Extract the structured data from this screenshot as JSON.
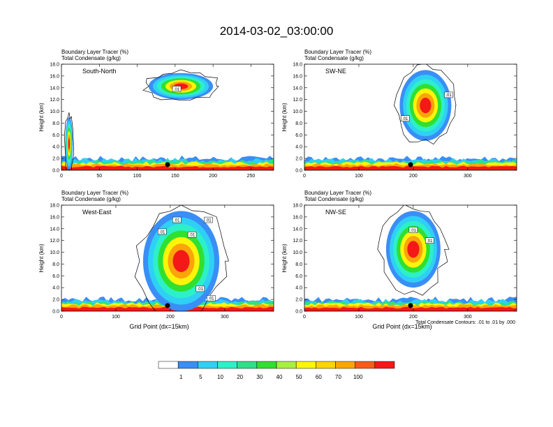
{
  "chart_data": {
    "type": "heatmap",
    "title": "2014-03-02_03:00:00",
    "footnote": "Total Condensate Contours: .01 to .01 by .000",
    "colorbar": {
      "colors": [
        "#ffffff",
        "#3a8ef6",
        "#2fd0f5",
        "#2ef0c8",
        "#2fe08a",
        "#30e030",
        "#a8f040",
        "#fcf40a",
        "#fcd30a",
        "#fca40a",
        "#fc5a1a",
        "#f51818"
      ],
      "labels": [
        "1",
        "5",
        "10",
        "20",
        "30",
        "40",
        "50",
        "60",
        "70",
        "100"
      ]
    },
    "panels": [
      {
        "id": "sn",
        "heading1": "Boundary Layer Tracer    (%)",
        "heading2": "Total Condensate    (g/kg)",
        "label": "South-North",
        "ylabel": "Height (km)",
        "xlabel": "",
        "xlim": [
          0,
          280
        ],
        "ylim": [
          0,
          18
        ],
        "yticks": [
          "0.0",
          "2.0",
          "4.0",
          "6.0",
          "8.0",
          "10.0",
          "12.0",
          "14.0",
          "16.0",
          "18.0"
        ],
        "xticks": [
          0,
          50,
          100,
          150,
          200,
          250
        ],
        "xticklabels": [
          "0",
          "50",
          "100",
          "150",
          "200",
          "250"
        ],
        "marker_x": 140,
        "contour_labels": [
          {
            "x": 152,
            "y": 13.8,
            "text": ".01"
          }
        ],
        "plumes": [
          {
            "x0": 115,
            "x1": 200,
            "y0": 12,
            "y1": 16.5
          },
          {
            "x0": 5,
            "x1": 15,
            "y0": 0,
            "y1": 9
          }
        ]
      },
      {
        "id": "swne",
        "heading1": "Boundary Layer Tracer    (%)",
        "heading2": "Total Condensate    (g/kg)",
        "label": "SW-NE",
        "ylabel": "Height (km)",
        "xlabel": "",
        "xlim": [
          0,
          390
        ],
        "ylim": [
          0,
          18
        ],
        "yticks": [
          "0.0",
          "2.0",
          "4.0",
          "6.0",
          "8.0",
          "10.0",
          "12.0",
          "14.0",
          "16.0",
          "18.0"
        ],
        "xticks": [
          0,
          100,
          200,
          300
        ],
        "xticklabels": [
          "0",
          "100",
          "200",
          "300"
        ],
        "marker_x": 195,
        "contour_labels": [
          {
            "x": 265,
            "y": 12.8,
            "text": ".01"
          },
          {
            "x": 185,
            "y": 8.8,
            "text": ".01"
          }
        ],
        "plumes": [
          {
            "x0": 175,
            "x1": 270,
            "y0": 5,
            "y1": 17
          }
        ]
      },
      {
        "id": "we",
        "heading1": "Boundary Layer Tracer    (%)",
        "heading2": "Total Condensate    (g/kg)",
        "label": "West-East",
        "ylabel": "Height (km)",
        "xlabel": "Grid Point (dx=15km)",
        "xlim": [
          0,
          390
        ],
        "ylim": [
          0,
          18
        ],
        "yticks": [
          "0.0",
          "2.0",
          "4.0",
          "6.0",
          "8.0",
          "10.0",
          "12.0",
          "14.0",
          "16.0",
          "18.0"
        ],
        "xticks": [
          0,
          100,
          200,
          300
        ],
        "xticklabels": [
          "0",
          "100",
          "200",
          "300"
        ],
        "marker_x": 195,
        "contour_labels": [
          {
            "x": 185,
            "y": 13.5,
            "text": ".01"
          },
          {
            "x": 212,
            "y": 15.5,
            "text": ".01"
          },
          {
            "x": 240,
            "y": 13.0,
            "text": ".01"
          },
          {
            "x": 270,
            "y": 15.5,
            "text": ".01"
          },
          {
            "x": 255,
            "y": 3.8,
            "text": ".01"
          },
          {
            "x": 275,
            "y": 2.2,
            "text": ".01"
          }
        ],
        "plumes": [
          {
            "x0": 150,
            "x1": 290,
            "y0": 0,
            "y1": 17
          }
        ]
      },
      {
        "id": "nwse",
        "heading1": "Boundary Layer Tracer    (%)",
        "heading2": "Total Condensate    (g/kg)",
        "label": "NW-SE",
        "ylabel": "Height (km)",
        "xlabel": "Grid Point (dx=15km)",
        "xlim": [
          0,
          390
        ],
        "ylim": [
          0,
          18
        ],
        "yticks": [
          "0.0",
          "2.0",
          "4.0",
          "6.0",
          "8.0",
          "10.0",
          "12.0",
          "14.0",
          "16.0",
          "18.0"
        ],
        "xticks": [
          0,
          100,
          200,
          300
        ],
        "xticklabels": [
          "0",
          "100",
          "200",
          "300"
        ],
        "marker_x": 195,
        "contour_labels": [
          {
            "x": 200,
            "y": 13.8,
            "text": ".01"
          },
          {
            "x": 230,
            "y": 12.0,
            "text": ".01"
          }
        ],
        "plumes": [
          {
            "x0": 150,
            "x1": 250,
            "y0": 4,
            "y1": 17
          }
        ]
      }
    ]
  }
}
